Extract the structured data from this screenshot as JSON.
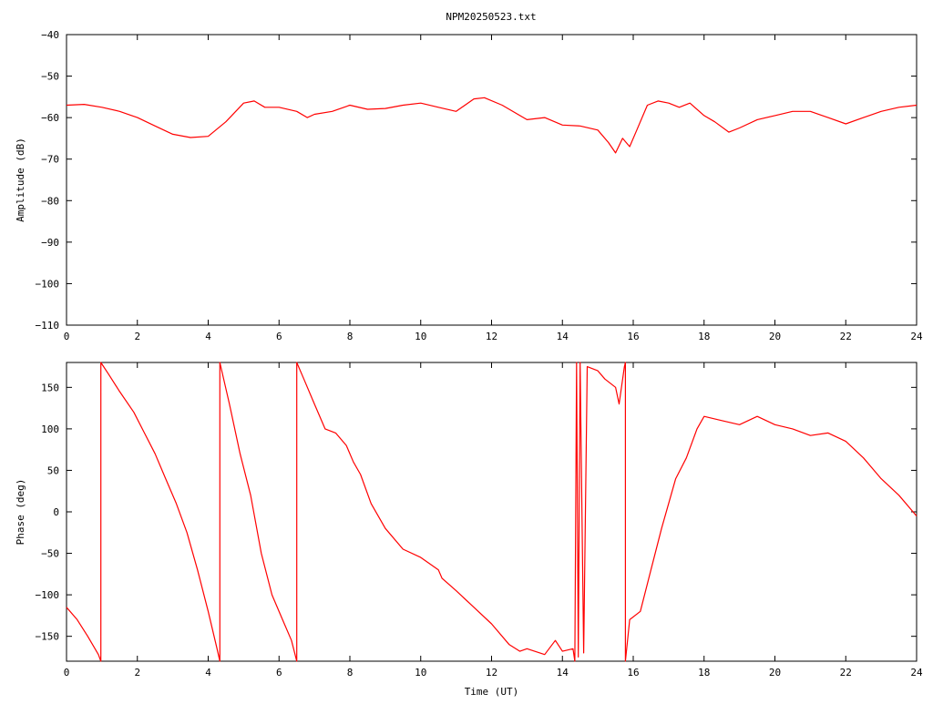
{
  "title": "NPM20250523.txt",
  "chart_data": [
    {
      "type": "line",
      "ylabel": "Amplitude (dB)",
      "xlabel": "",
      "xlim": [
        0,
        24
      ],
      "ylim": [
        -110,
        -40
      ],
      "x_ticks": [
        "0",
        "2",
        "4",
        "6",
        "8",
        "10",
        "12",
        "14",
        "16",
        "18",
        "20",
        "22",
        "24"
      ],
      "y_ticks": [
        "-40",
        "-50",
        "-60",
        "-70",
        "-80",
        "-90",
        "-100",
        "-110"
      ],
      "series": [
        {
          "color": "#ff0000",
          "points": [
            [
              0,
              -57
            ],
            [
              0.5,
              -56.8
            ],
            [
              1,
              -57.5
            ],
            [
              1.5,
              -58.5
            ],
            [
              2,
              -60
            ],
            [
              2.5,
              -62
            ],
            [
              3,
              -64
            ],
            [
              3.5,
              -64.8
            ],
            [
              4,
              -64.5
            ],
            [
              4.5,
              -61
            ],
            [
              5,
              -56.5
            ],
            [
              5.3,
              -56
            ],
            [
              5.6,
              -57.5
            ],
            [
              6,
              -57.5
            ],
            [
              6.5,
              -58.5
            ],
            [
              6.8,
              -60
            ],
            [
              7,
              -59.2
            ],
            [
              7.5,
              -58.5
            ],
            [
              8,
              -57
            ],
            [
              8.5,
              -58
            ],
            [
              9,
              -57.8
            ],
            [
              9.5,
              -57
            ],
            [
              10,
              -56.5
            ],
            [
              10.5,
              -57.5
            ],
            [
              11,
              -58.5
            ],
            [
              11.5,
              -55.5
            ],
            [
              11.8,
              -55.2
            ],
            [
              12.3,
              -57
            ],
            [
              12.5,
              -58
            ],
            [
              13,
              -60.5
            ],
            [
              13.5,
              -60
            ],
            [
              14,
              -61.8
            ],
            [
              14.5,
              -62
            ],
            [
              15,
              -63
            ],
            [
              15.3,
              -66
            ],
            [
              15.5,
              -68.5
            ],
            [
              15.7,
              -65
            ],
            [
              15.9,
              -67
            ],
            [
              16.1,
              -63
            ],
            [
              16.4,
              -57
            ],
            [
              16.7,
              -56
            ],
            [
              17,
              -56.5
            ],
            [
              17.3,
              -57.5
            ],
            [
              17.6,
              -56.5
            ],
            [
              18,
              -59.5
            ],
            [
              18.3,
              -61
            ],
            [
              18.7,
              -63.5
            ],
            [
              19,
              -62.5
            ],
            [
              19.5,
              -60.5
            ],
            [
              20,
              -59.5
            ],
            [
              20.5,
              -58.5
            ],
            [
              21,
              -58.5
            ],
            [
              21.5,
              -60
            ],
            [
              22,
              -61.5
            ],
            [
              22.5,
              -60
            ],
            [
              23,
              -58.5
            ],
            [
              23.5,
              -57.5
            ],
            [
              24,
              -57
            ]
          ]
        }
      ]
    },
    {
      "type": "line",
      "ylabel": "Phase (deg)",
      "xlabel": "Time (UT)",
      "xlim": [
        0,
        24
      ],
      "ylim": [
        -180,
        180
      ],
      "x_ticks": [
        "0",
        "2",
        "4",
        "6",
        "8",
        "10",
        "12",
        "14",
        "16",
        "18",
        "20",
        "22",
        "24"
      ],
      "y_ticks": [
        "150",
        "100",
        "50",
        "0",
        "-50",
        "-100",
        "-150"
      ],
      "series": [
        {
          "color": "#ff0000",
          "points": [
            [
              0,
              -115
            ],
            [
              0.3,
              -130
            ],
            [
              0.6,
              -150
            ],
            [
              0.9,
              -172
            ],
            [
              0.97,
              -180
            ],
            [
              0.97,
              180
            ],
            [
              1.2,
              165
            ],
            [
              1.5,
              145
            ],
            [
              1.9,
              120
            ],
            [
              2.2,
              95
            ],
            [
              2.5,
              70
            ],
            [
              2.8,
              40
            ],
            [
              3.1,
              10
            ],
            [
              3.4,
              -25
            ],
            [
              3.7,
              -70
            ],
            [
              4.0,
              -120
            ],
            [
              4.25,
              -165
            ],
            [
              4.33,
              -180
            ],
            [
              4.33,
              180
            ],
            [
              4.6,
              130
            ],
            [
              4.9,
              70
            ],
            [
              5.2,
              20
            ],
            [
              5.5,
              -50
            ],
            [
              5.8,
              -100
            ],
            [
              6.1,
              -130
            ],
            [
              6.35,
              -155
            ],
            [
              6.5,
              -180
            ],
            [
              6.5,
              180
            ],
            [
              6.7,
              160
            ],
            [
              7.0,
              130
            ],
            [
              7.3,
              100
            ],
            [
              7.6,
              95
            ],
            [
              7.9,
              80
            ],
            [
              8.1,
              60
            ],
            [
              8.3,
              45
            ],
            [
              8.6,
              10
            ],
            [
              9.0,
              -20
            ],
            [
              9.5,
              -45
            ],
            [
              10.0,
              -55
            ],
            [
              10.5,
              -70
            ],
            [
              10.6,
              -80
            ],
            [
              11.0,
              -95
            ],
            [
              11.5,
              -115
            ],
            [
              12.0,
              -135
            ],
            [
              12.5,
              -160
            ],
            [
              12.8,
              -168
            ],
            [
              13.0,
              -165
            ],
            [
              13.5,
              -172
            ],
            [
              13.8,
              -155
            ],
            [
              14.0,
              -168
            ],
            [
              14.3,
              -165
            ],
            [
              14.35,
              -180
            ],
            [
              14.4,
              180
            ],
            [
              14.45,
              -175
            ],
            [
              14.5,
              180
            ],
            [
              14.6,
              -170
            ],
            [
              14.7,
              175
            ],
            [
              15.0,
              170
            ],
            [
              15.2,
              160
            ],
            [
              15.5,
              150
            ],
            [
              15.6,
              130
            ],
            [
              15.75,
              175
            ],
            [
              15.78,
              180
            ],
            [
              15.78,
              -180
            ],
            [
              15.9,
              -130
            ],
            [
              16.2,
              -120
            ],
            [
              16.5,
              -70
            ],
            [
              16.8,
              -20
            ],
            [
              17.2,
              40
            ],
            [
              17.5,
              65
            ],
            [
              17.8,
              100
            ],
            [
              18.0,
              115
            ],
            [
              18.5,
              110
            ],
            [
              19.0,
              105
            ],
            [
              19.5,
              115
            ],
            [
              20.0,
              105
            ],
            [
              20.5,
              100
            ],
            [
              21.0,
              92
            ],
            [
              21.5,
              95
            ],
            [
              22.0,
              85
            ],
            [
              22.5,
              65
            ],
            [
              23.0,
              40
            ],
            [
              23.5,
              20
            ],
            [
              24.0,
              -5
            ]
          ]
        }
      ]
    }
  ]
}
